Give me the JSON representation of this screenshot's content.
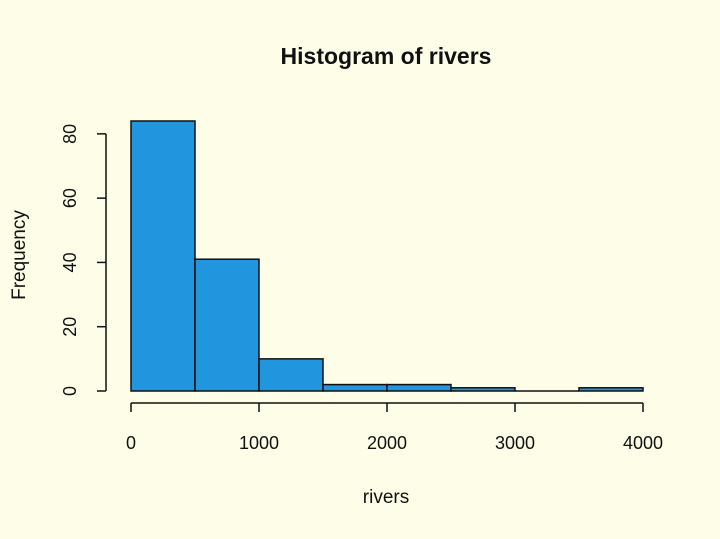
{
  "colors": {
    "background": "#fdfde8",
    "bar_fill": "#2196df",
    "bar_stroke": "#111111"
  },
  "chart_data": {
    "type": "bar",
    "subtype": "histogram",
    "title": "Histogram of rivers",
    "xlabel": "rivers",
    "ylabel": "Frequency",
    "bin_edges": [
      0,
      500,
      1000,
      1500,
      2000,
      2500,
      3000,
      3500,
      4000
    ],
    "values": [
      84,
      41,
      10,
      2,
      2,
      1,
      0,
      1
    ],
    "xlim": [
      0,
      4000
    ],
    "ylim": [
      0,
      84
    ],
    "x_ticks": [
      0,
      1000,
      2000,
      3000,
      4000
    ],
    "x_tick_labels": [
      "0",
      "1000",
      "2000",
      "3000",
      "4000"
    ],
    "y_ticks": [
      0,
      20,
      40,
      60,
      80
    ],
    "y_tick_labels": [
      "0",
      "20",
      "40",
      "60",
      "80"
    ],
    "grid": false,
    "legend": "none"
  }
}
